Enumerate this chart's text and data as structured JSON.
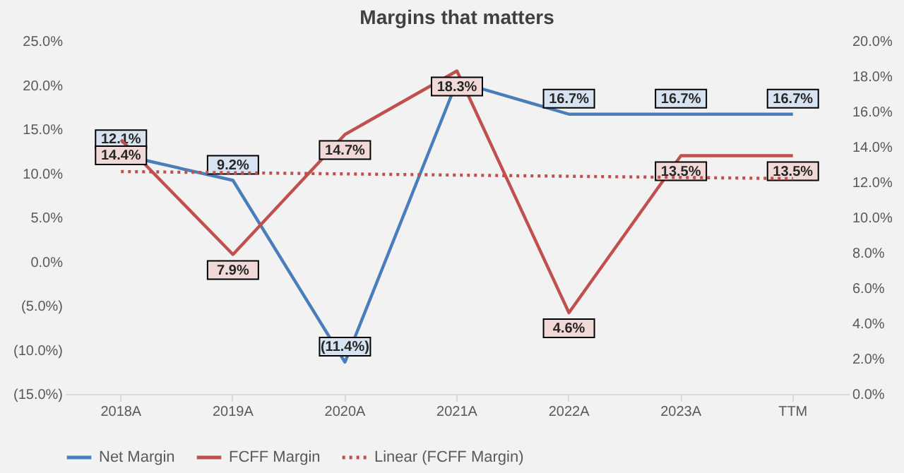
{
  "chart_data": {
    "type": "line",
    "title": "Margins that matters",
    "categories": [
      "2018A",
      "2019A",
      "2020A",
      "2021A",
      "2022A",
      "2023A",
      "TTM"
    ],
    "ylim": [
      -15,
      25
    ],
    "yticks": [
      {
        "value": -15,
        "label": "(15.0%)"
      },
      {
        "value": -10,
        "label": "(10.0%)"
      },
      {
        "value": -5,
        "label": "(5.0%)"
      },
      {
        "value": 0,
        "label": "0.0%"
      },
      {
        "value": 5,
        "label": "5.0%"
      },
      {
        "value": 10,
        "label": "10.0%"
      },
      {
        "value": 15,
        "label": "15.0%"
      },
      {
        "value": 20,
        "label": "20.0%"
      },
      {
        "value": 25,
        "label": "25.0%"
      }
    ],
    "y2lim": [
      0,
      20
    ],
    "y2ticks": [
      {
        "value": 0,
        "label": "0.0%"
      },
      {
        "value": 2,
        "label": "2.0%"
      },
      {
        "value": 4,
        "label": "4.0%"
      },
      {
        "value": 6,
        "label": "6.0%"
      },
      {
        "value": 8,
        "label": "8.0%"
      },
      {
        "value": 10,
        "label": "10.0%"
      },
      {
        "value": 12,
        "label": "12.0%"
      },
      {
        "value": 14,
        "label": "14.0%"
      },
      {
        "value": 16,
        "label": "16.0%"
      },
      {
        "value": 18,
        "label": "18.0%"
      },
      {
        "value": 20,
        "label": "20.0%"
      }
    ],
    "legend": "bottom",
    "series": [
      {
        "name": "Net Margin",
        "color": "#4a7ebb",
        "line_style": "solid",
        "values": [
          12.1,
          9.2,
          -11.4,
          20.4,
          16.7,
          16.7,
          16.7
        ],
        "value_labels": [
          "12.1%",
          "9.2%",
          "(11.4%)",
          null,
          "16.7%",
          "16.7%",
          "16.7%"
        ]
      },
      {
        "name": "FCFF Margin",
        "color": "#c0504d",
        "line_style": "solid",
        "axis": "y2",
        "values": [
          14.4,
          7.9,
          14.7,
          18.3,
          4.6,
          13.5,
          13.5
        ],
        "value_labels": [
          "14.4%",
          "7.9%",
          "14.7%",
          "18.3%",
          "4.6%",
          "13.5%",
          "13.5%"
        ]
      },
      {
        "name": "Linear (FCFF Margin)",
        "color": "#c0504d",
        "axis": "y2",
        "type": "line",
        "line_style": "dotted",
        "x": [
          "2018A",
          "TTM"
        ],
        "values": [
          12.6,
          12.2
        ]
      }
    ]
  }
}
